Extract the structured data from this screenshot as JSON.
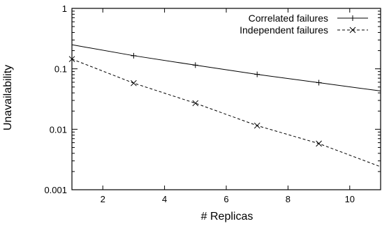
{
  "chart_data": {
    "type": "line",
    "title": "",
    "xlabel": "# Replicas",
    "ylabel": "Unavailability",
    "x_ticks": [
      2,
      4,
      6,
      8,
      10
    ],
    "y_ticks": [
      {
        "value": 0.001,
        "label": "0.001"
      },
      {
        "value": 0.01,
        "label": "0.01"
      },
      {
        "value": 0.1,
        "label": "0.1"
      },
      {
        "value": 1,
        "label": "1"
      }
    ],
    "xlim": [
      1,
      11
    ],
    "ylim": [
      0.001,
      1
    ],
    "y_scale": "log",
    "grid": false,
    "legend_position": "top-right",
    "series": [
      {
        "name": "Correlated failures",
        "marker": "plus",
        "line_style": "solid",
        "color": "#000000",
        "points": [
          {
            "x": 1,
            "y": 0.25
          },
          {
            "x": 3,
            "y": 0.165
          },
          {
            "x": 5,
            "y": 0.115
          },
          {
            "x": 7,
            "y": 0.081
          },
          {
            "x": 9,
            "y": 0.059
          },
          {
            "x": 11,
            "y": 0.043
          }
        ],
        "markers_at": [
          3,
          5,
          7,
          9
        ]
      },
      {
        "name": "Independent failures",
        "marker": "cross",
        "line_style": "dashed",
        "color": "#000000",
        "points": [
          {
            "x": 1,
            "y": 0.145
          },
          {
            "x": 3,
            "y": 0.058
          },
          {
            "x": 5,
            "y": 0.027
          },
          {
            "x": 7,
            "y": 0.0115
          },
          {
            "x": 9,
            "y": 0.0058
          },
          {
            "x": 11,
            "y": 0.0024
          }
        ],
        "markers_at": [
          1,
          3,
          5,
          7,
          9
        ]
      }
    ]
  }
}
